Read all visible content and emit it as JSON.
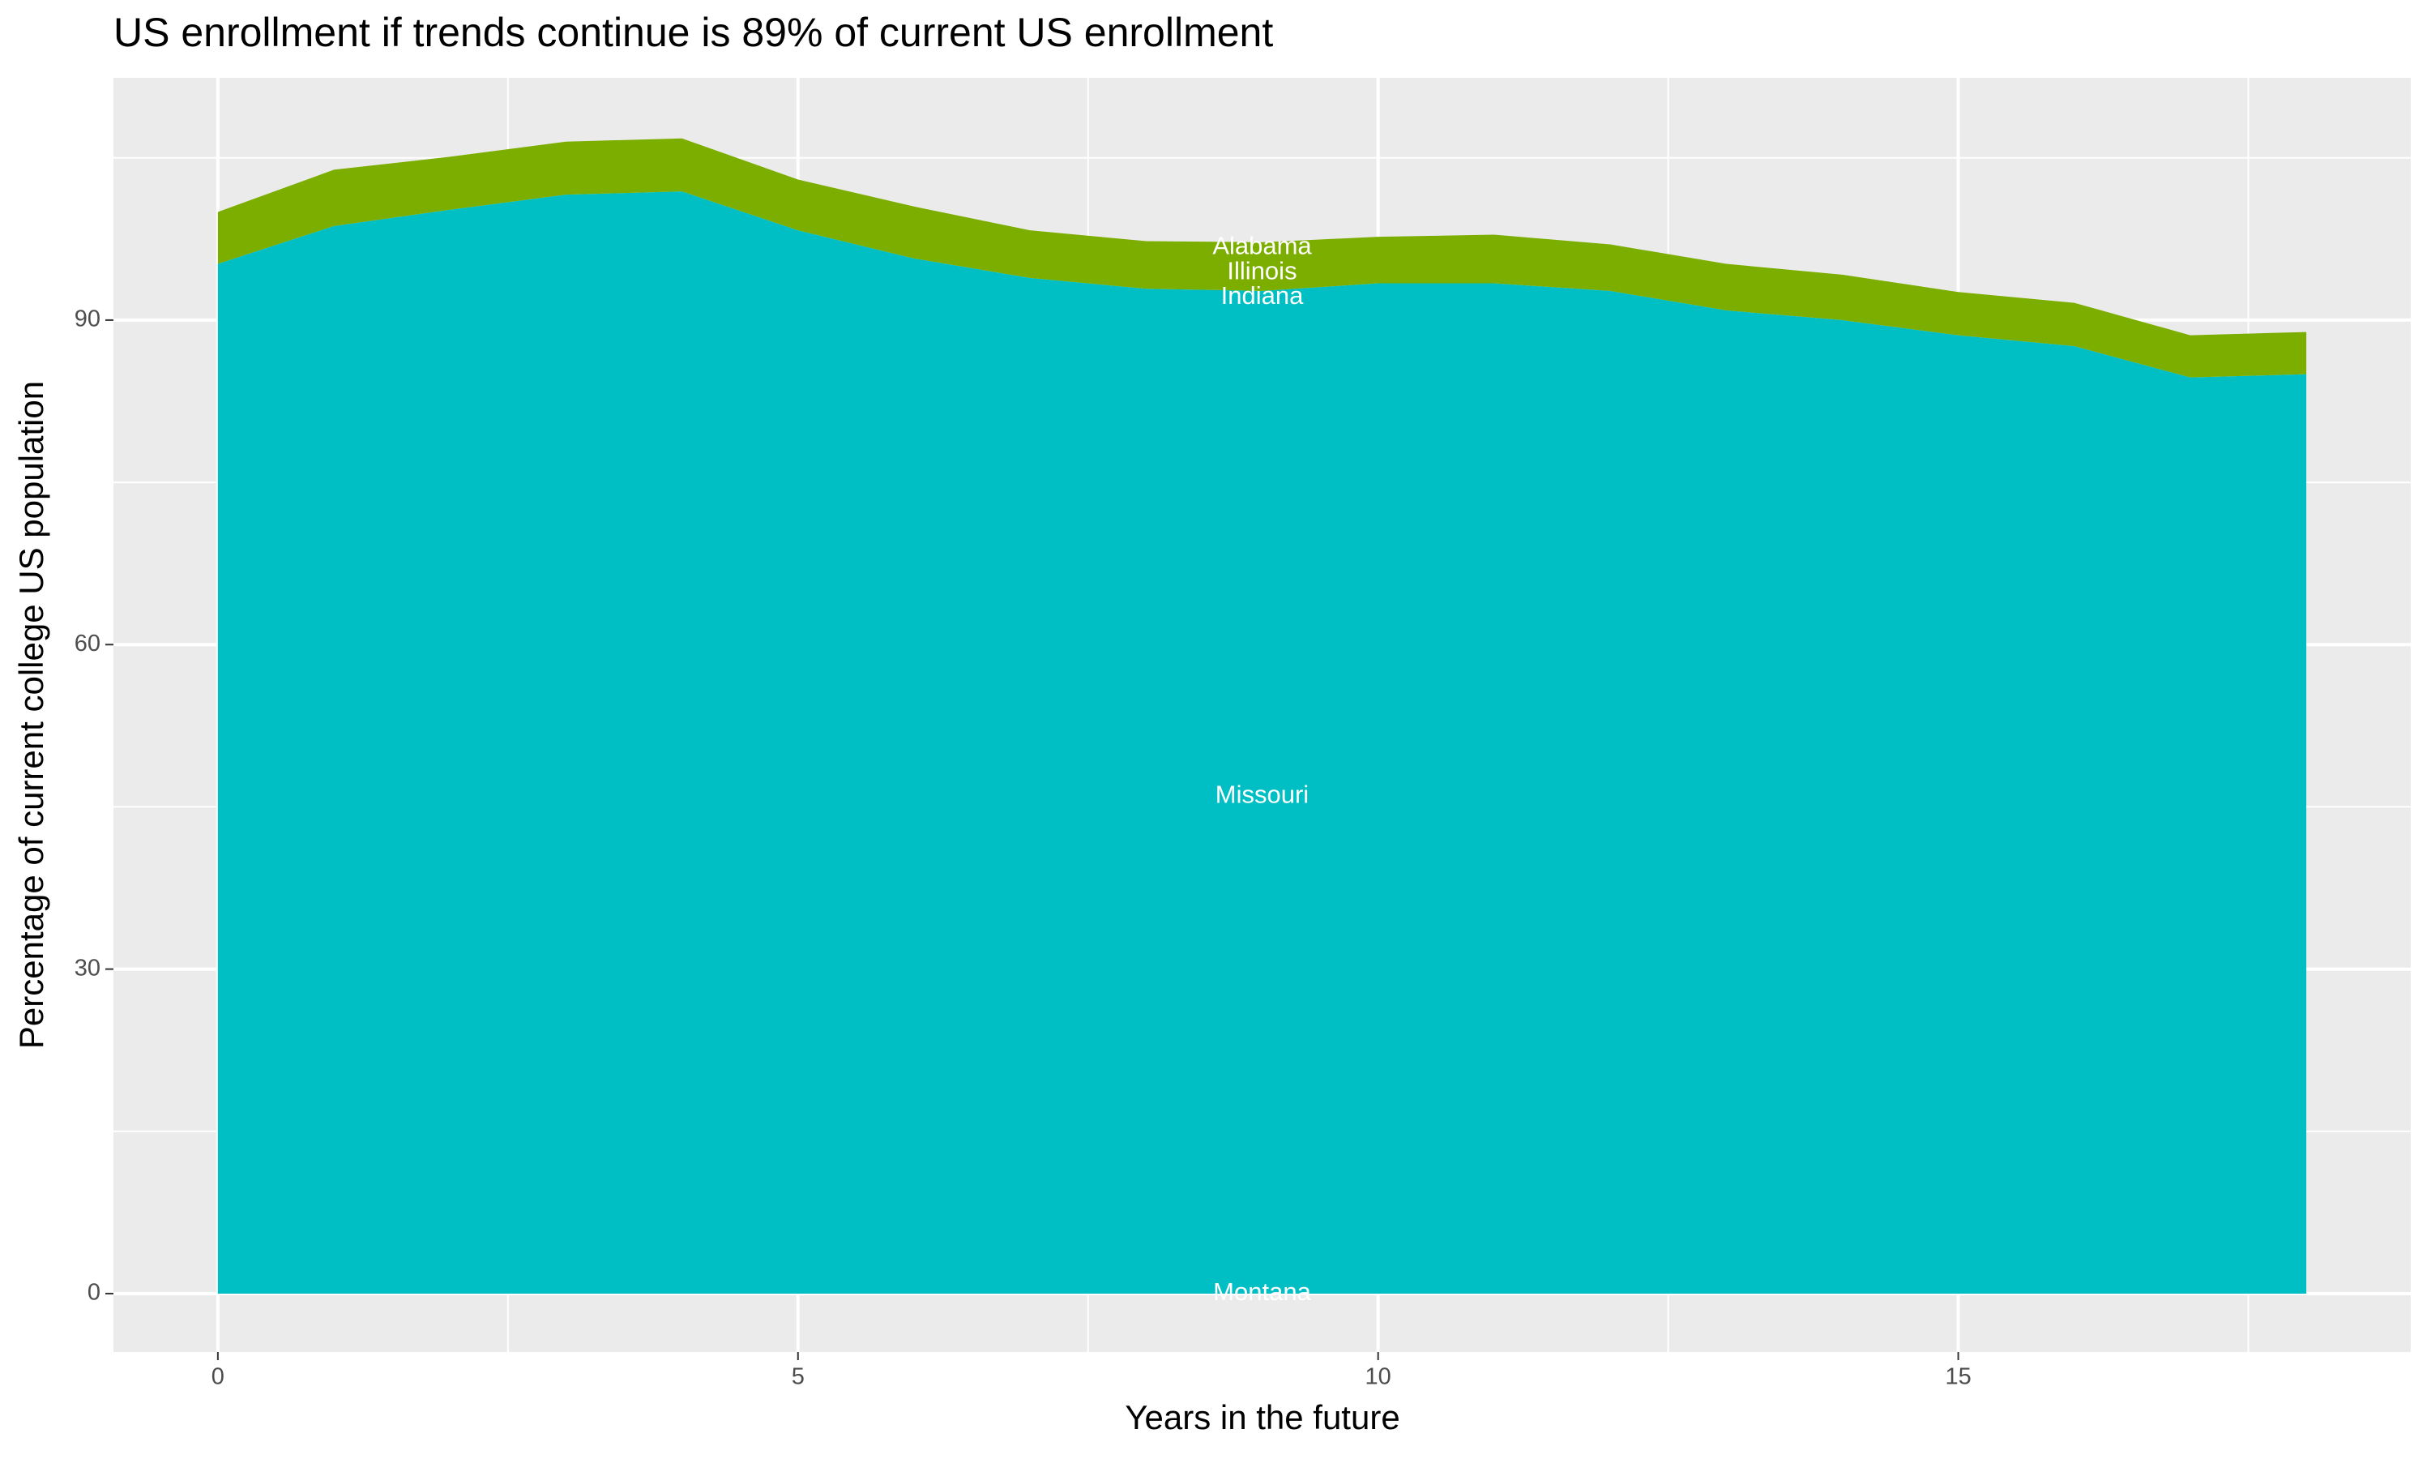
{
  "chart_data": {
    "type": "stacked_area",
    "title": "US enrollment if trends continue is 89% of current US enrollment",
    "x_label": "Years in the future",
    "y_label": "Percentage of current college US population",
    "x": [
      0,
      1,
      2,
      3,
      4,
      5,
      6,
      7,
      8,
      9,
      10,
      11,
      12,
      13,
      14,
      15,
      16,
      17,
      18
    ],
    "series": [
      {
        "color": "#00BFC4",
        "values": [
          95.2,
          98.7,
          100.2,
          101.6,
          101.9,
          98.3,
          95.7,
          93.9,
          92.9,
          92.7,
          93.4,
          93.4,
          92.7,
          90.9,
          90.0,
          88.6,
          87.6,
          84.7,
          85.0
        ]
      },
      {
        "color": "#7CAE00",
        "values": [
          4.8,
          5.2,
          4.9,
          4.9,
          4.9,
          4.7,
          4.8,
          4.4,
          4.4,
          4.5,
          4.3,
          4.5,
          4.3,
          4.3,
          4.2,
          4.0,
          4.0,
          3.9,
          3.9
        ]
      }
    ],
    "annotations": [
      {
        "text": "Alabama",
        "x": 9,
        "y": 96.7
      },
      {
        "text": "Illinois",
        "x": 9,
        "y": 94.4
      },
      {
        "text": "Indiana",
        "x": 9,
        "y": 92.1
      },
      {
        "text": "Missouri",
        "x": 9,
        "y": 46
      },
      {
        "text": "Montana",
        "x": 9,
        "y": 0
      }
    ],
    "xlim": [
      -0.9,
      18.9
    ],
    "ylim": [
      -5.4,
      112.4
    ],
    "xticks": [
      0,
      5,
      10,
      15
    ],
    "yticks": [
      0,
      30,
      60,
      90
    ],
    "x_minor": [
      2.5,
      7.5,
      12.5,
      17.5
    ],
    "y_minor": [
      15,
      45,
      75,
      105
    ],
    "grid": true
  }
}
